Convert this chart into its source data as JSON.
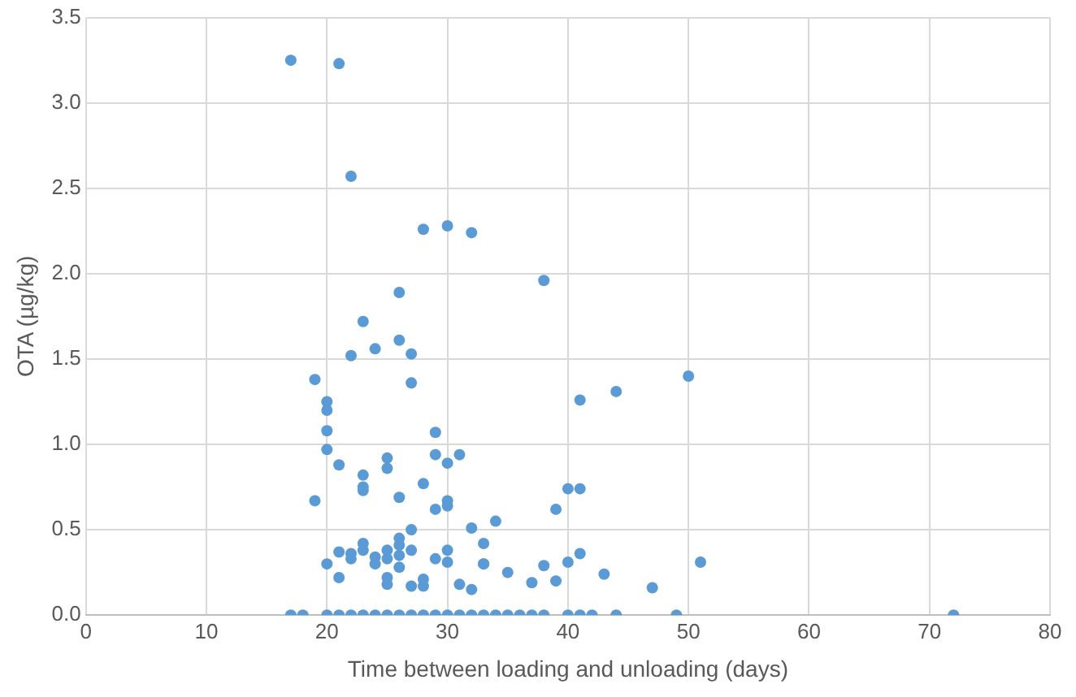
{
  "chart_data": {
    "type": "scatter",
    "xlabel": "Time between loading and unloading (days)",
    "ylabel": "OTA (µg/kg)",
    "xlim": [
      0,
      80
    ],
    "xticks": [
      0,
      10,
      20,
      30,
      40,
      50,
      60,
      70,
      80
    ],
    "ylim": [
      0,
      3.5
    ],
    "yticks": [
      {
        "value": 0,
        "label": "0.0"
      },
      {
        "value": 0.5,
        "label": "0.5"
      },
      {
        "value": 1,
        "label": "1.0"
      },
      {
        "value": 1.5,
        "label": "1.5"
      },
      {
        "value": 2,
        "label": "2.0"
      },
      {
        "value": 2.5,
        "label": "2.5"
      },
      {
        "value": 3,
        "label": "3.0"
      },
      {
        "value": 3.5,
        "label": "3.5"
      }
    ],
    "grid": true,
    "marker": "circle",
    "series": [
      {
        "color": "#5b9bd5",
        "x": [
          17,
          21,
          22,
          28,
          30,
          32,
          38,
          26,
          23,
          24,
          22,
          26,
          27,
          19,
          27,
          50,
          44,
          41,
          20,
          20,
          20,
          29,
          20,
          29,
          31,
          25,
          21,
          25,
          30,
          26,
          19,
          28,
          23,
          23,
          23,
          30,
          30,
          29,
          33,
          34,
          39,
          40,
          41,
          32,
          33,
          35,
          38,
          37,
          39,
          40,
          41,
          43,
          47,
          51,
          20,
          21,
          21,
          22,
          22,
          23,
          23,
          24,
          24,
          25,
          25,
          25,
          25,
          26,
          26,
          26,
          26,
          27,
          27,
          27,
          28,
          28,
          29,
          30,
          30,
          31,
          32,
          33,
          17,
          18,
          20,
          21,
          22,
          23,
          24,
          25,
          26,
          27,
          28,
          29,
          30,
          31,
          32,
          33,
          34,
          35,
          36,
          37,
          38,
          40,
          41,
          42,
          44,
          49,
          72
        ],
        "values": [
          3.25,
          3.23,
          2.57,
          2.26,
          2.28,
          2.24,
          1.96,
          1.89,
          1.72,
          1.56,
          1.52,
          1.61,
          1.53,
          1.38,
          1.36,
          1.4,
          1.31,
          1.26,
          1.25,
          1.2,
          1.08,
          1.07,
          0.97,
          0.94,
          0.94,
          0.92,
          0.88,
          0.86,
          0.89,
          0.69,
          0.67,
          0.77,
          0.82,
          0.75,
          0.73,
          0.67,
          0.64,
          0.62,
          0.42,
          0.55,
          0.62,
          0.74,
          0.74,
          0.51,
          0.3,
          0.25,
          0.29,
          0.19,
          0.2,
          0.31,
          0.36,
          0.24,
          0.16,
          0.31,
          0.3,
          0.22,
          0.37,
          0.33,
          0.36,
          0.38,
          0.42,
          0.34,
          0.3,
          0.38,
          0.33,
          0.22,
          0.18,
          0.28,
          0.35,
          0.41,
          0.45,
          0.38,
          0.5,
          0.17,
          0.21,
          0.17,
          0.33,
          0.31,
          0.38,
          0.18,
          0.15,
          0.3,
          0,
          0,
          0,
          0,
          0,
          0,
          0,
          0,
          0,
          0,
          0,
          0,
          0,
          0,
          0,
          0,
          0,
          0,
          0,
          0,
          0,
          0,
          0,
          0,
          0,
          0,
          0
        ]
      }
    ]
  }
}
